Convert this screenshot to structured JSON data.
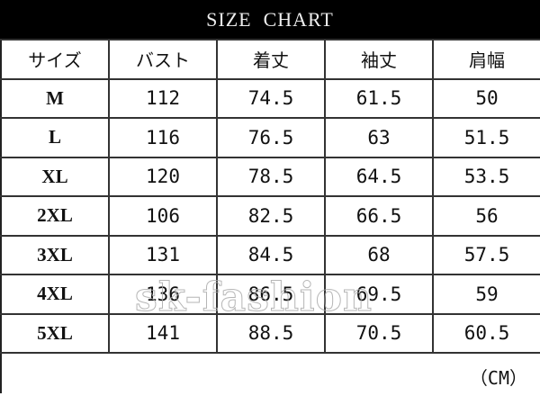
{
  "title": "SIZE  CHART",
  "headers": [
    "サイズ",
    "バスト",
    "着丈",
    "袖丈",
    "肩幅"
  ],
  "rows": [
    [
      "M",
      "112",
      "74.5",
      "61.5",
      "50"
    ],
    [
      "L",
      "116",
      "76.5",
      "63",
      "51.5"
    ],
    [
      "XL",
      "120",
      "78.5",
      "64.5",
      "53.5"
    ],
    [
      "2XL",
      "106",
      "82.5",
      "66.5",
      "56"
    ],
    [
      "3XL",
      "131",
      "84.5",
      "68",
      "57.5"
    ],
    [
      "4XL",
      "136",
      "86.5",
      "69.5",
      "59"
    ],
    [
      "5XL",
      "141",
      "88.5",
      "70.5",
      "60.5"
    ]
  ],
  "unit": "（CM）",
  "watermark": "sk-fashion"
}
